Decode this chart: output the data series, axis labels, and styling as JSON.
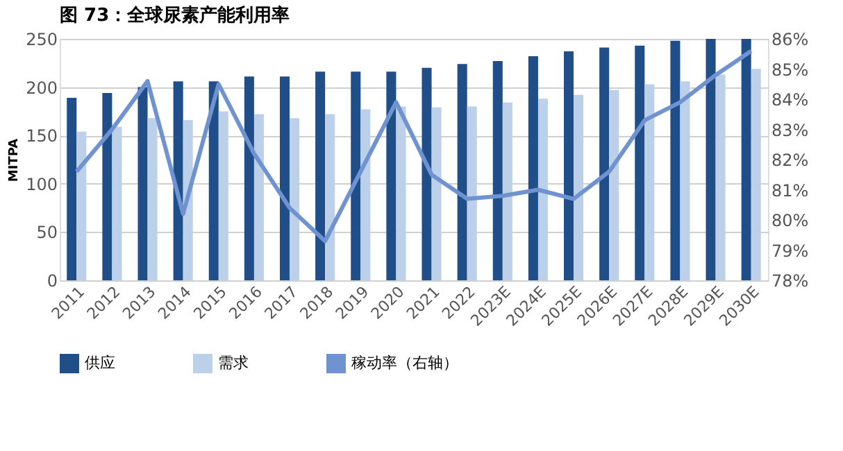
{
  "chart_data": {
    "type": "bar",
    "title": "图 73：全球尿素产能利用率",
    "categories": [
      "2011",
      "2012",
      "2013",
      "2014",
      "2015",
      "2016",
      "2017",
      "2018",
      "2019",
      "2020",
      "2021",
      "2022",
      "2023E",
      "2024E",
      "2025E",
      "2026E",
      "2027E",
      "2028E",
      "2029E",
      "2030E"
    ],
    "series": [
      {
        "name": "供应",
        "color": "#1f4e89",
        "values": [
          189,
          194,
          200,
          206,
          206,
          211,
          211,
          216,
          216,
          216,
          220,
          224,
          227,
          232,
          237,
          241,
          243,
          248,
          250,
          250
        ]
      },
      {
        "name": "需求",
        "color": "#bdd0ea",
        "values": [
          154,
          159,
          168,
          166,
          175,
          172,
          168,
          172,
          177,
          180,
          179,
          180,
          184,
          188,
          192,
          197,
          203,
          206,
          213,
          219
        ]
      },
      {
        "name": "稼动率（右轴）",
        "color": "#6f93d0",
        "type": "line",
        "axis": "y2",
        "values": [
          81.6,
          83.0,
          84.6,
          80.2,
          84.5,
          82.2,
          80.4,
          79.3,
          81.6,
          83.9,
          81.5,
          80.7,
          80.8,
          81.0,
          80.7,
          81.6,
          83.3,
          83.9,
          84.8,
          85.6
        ]
      }
    ],
    "ylabel": "MITPA",
    "ylim": [
      0,
      250
    ],
    "yticks": [
      0,
      50,
      100,
      150,
      200,
      250
    ],
    "y2lim": [
      78,
      86
    ],
    "y2ticks": [
      {
        "value": 78,
        "label": "78%"
      },
      {
        "value": 79,
        "label": "79%"
      },
      {
        "value": 80,
        "label": "80%"
      },
      {
        "value": 81,
        "label": "81%"
      },
      {
        "value": 82,
        "label": "82%"
      },
      {
        "value": 83,
        "label": "83%"
      },
      {
        "value": 84,
        "label": "84%"
      },
      {
        "value": 85,
        "label": "85%"
      },
      {
        "value": 86,
        "label": "86%"
      }
    ],
    "grid": "y",
    "legend": "bottom",
    "marker": "none",
    "line_style": "solid"
  }
}
